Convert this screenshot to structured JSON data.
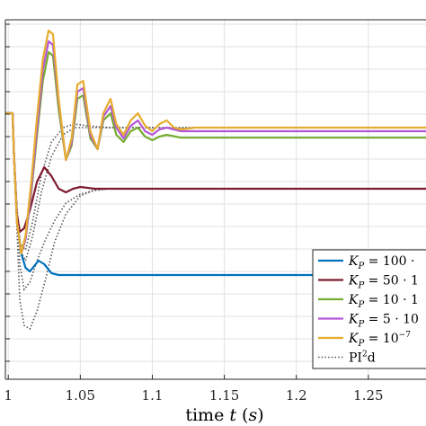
{
  "chart_data": {
    "type": "line",
    "xlabel": "time t (s)",
    "xlim": [
      0.998,
      1.29
    ],
    "ylim": [
      0,
      1
    ],
    "xticks": [
      1,
      1.05,
      1.1,
      1.15,
      1.2,
      1.25
    ],
    "xtick_labels": [
      "1",
      "1.05",
      "1.1",
      "1.15",
      "1.2",
      "1.25"
    ],
    "grid": true,
    "legend_position": "lower-right",
    "series": [
      {
        "name": "K_P = 100 ·",
        "label_parts": {
          "main": "K",
          "sub": "P",
          "rest": " = 100 ·"
        },
        "color": "#0072BD",
        "style": "solid",
        "steady": 0.29,
        "points": [
          [
            0.998,
            0.74
          ],
          [
            1.003,
            0.74
          ],
          [
            1.004,
            0.62
          ],
          [
            1.006,
            0.45
          ],
          [
            1.009,
            0.35
          ],
          [
            1.012,
            0.31
          ],
          [
            1.015,
            0.3
          ],
          [
            1.018,
            0.315
          ],
          [
            1.021,
            0.33
          ],
          [
            1.025,
            0.32
          ],
          [
            1.03,
            0.295
          ],
          [
            1.035,
            0.29
          ],
          [
            1.05,
            0.29
          ],
          [
            1.29,
            0.29
          ]
        ]
      },
      {
        "name": "K_P = 50 · 1",
        "label_parts": {
          "main": "K",
          "sub": "P",
          "rest": " = 50 · 1"
        },
        "color": "#7E1A2F",
        "style": "solid",
        "steady": 0.53,
        "points": [
          [
            0.998,
            0.74
          ],
          [
            1.003,
            0.74
          ],
          [
            1.004,
            0.62
          ],
          [
            1.006,
            0.46
          ],
          [
            1.008,
            0.41
          ],
          [
            1.011,
            0.42
          ],
          [
            1.015,
            0.47
          ],
          [
            1.02,
            0.55
          ],
          [
            1.025,
            0.59
          ],
          [
            1.03,
            0.565
          ],
          [
            1.035,
            0.53
          ],
          [
            1.04,
            0.52
          ],
          [
            1.045,
            0.53
          ],
          [
            1.05,
            0.535
          ],
          [
            1.06,
            0.53
          ],
          [
            1.29,
            0.53
          ]
        ]
      },
      {
        "name": "K_P = 10 · 1",
        "label_parts": {
          "main": "K",
          "sub": "P",
          "rest": " = 10 · 1"
        },
        "color": "#77AC30",
        "style": "solid",
        "steady": 0.672,
        "points": [
          [
            0.998,
            0.74
          ],
          [
            1.003,
            0.74
          ],
          [
            1.004,
            0.62
          ],
          [
            1.006,
            0.44
          ],
          [
            1.009,
            0.35
          ],
          [
            1.012,
            0.39
          ],
          [
            1.016,
            0.52
          ],
          [
            1.02,
            0.68
          ],
          [
            1.024,
            0.83
          ],
          [
            1.028,
            0.91
          ],
          [
            1.031,
            0.9
          ],
          [
            1.035,
            0.75
          ],
          [
            1.04,
            0.61
          ],
          [
            1.044,
            0.65
          ],
          [
            1.048,
            0.78
          ],
          [
            1.052,
            0.79
          ],
          [
            1.057,
            0.67
          ],
          [
            1.062,
            0.64
          ],
          [
            1.066,
            0.72
          ],
          [
            1.071,
            0.74
          ],
          [
            1.075,
            0.68
          ],
          [
            1.08,
            0.66
          ],
          [
            1.085,
            0.69
          ],
          [
            1.09,
            0.7
          ],
          [
            1.095,
            0.675
          ],
          [
            1.1,
            0.665
          ],
          [
            1.105,
            0.675
          ],
          [
            1.11,
            0.68
          ],
          [
            1.12,
            0.672
          ],
          [
            1.29,
            0.672
          ]
        ]
      },
      {
        "name": "K_P = 5 · 10",
        "label_parts": {
          "main": "K",
          "sub": "P",
          "rest": " = 5 · 10"
        },
        "color": "#B356D6",
        "style": "solid",
        "steady": 0.69,
        "points": [
          [
            0.998,
            0.74
          ],
          [
            1.003,
            0.74
          ],
          [
            1.004,
            0.62
          ],
          [
            1.006,
            0.44
          ],
          [
            1.009,
            0.35
          ],
          [
            1.012,
            0.39
          ],
          [
            1.016,
            0.53
          ],
          [
            1.02,
            0.7
          ],
          [
            1.024,
            0.86
          ],
          [
            1.028,
            0.94
          ],
          [
            1.031,
            0.93
          ],
          [
            1.035,
            0.77
          ],
          [
            1.04,
            0.61
          ],
          [
            1.044,
            0.66
          ],
          [
            1.048,
            0.8
          ],
          [
            1.052,
            0.81
          ],
          [
            1.057,
            0.68
          ],
          [
            1.062,
            0.64
          ],
          [
            1.066,
            0.73
          ],
          [
            1.071,
            0.76
          ],
          [
            1.075,
            0.7
          ],
          [
            1.08,
            0.67
          ],
          [
            1.085,
            0.705
          ],
          [
            1.09,
            0.72
          ],
          [
            1.095,
            0.69
          ],
          [
            1.1,
            0.68
          ],
          [
            1.105,
            0.695
          ],
          [
            1.11,
            0.7
          ],
          [
            1.12,
            0.69
          ],
          [
            1.29,
            0.69
          ]
        ]
      },
      {
        "name": "K_P = 10^-7",
        "label_parts": {
          "main": "K",
          "sub": "P",
          "rest": " = 10",
          "sup": "−7"
        },
        "color": "#E6AC2E",
        "style": "solid",
        "steady": 0.7,
        "points": [
          [
            0.998,
            0.74
          ],
          [
            1.003,
            0.74
          ],
          [
            1.004,
            0.62
          ],
          [
            1.006,
            0.44
          ],
          [
            1.009,
            0.35
          ],
          [
            1.012,
            0.4
          ],
          [
            1.016,
            0.55
          ],
          [
            1.02,
            0.73
          ],
          [
            1.024,
            0.89
          ],
          [
            1.028,
            0.97
          ],
          [
            1.031,
            0.96
          ],
          [
            1.035,
            0.78
          ],
          [
            1.04,
            0.61
          ],
          [
            1.044,
            0.67
          ],
          [
            1.048,
            0.82
          ],
          [
            1.052,
            0.83
          ],
          [
            1.057,
            0.69
          ],
          [
            1.062,
            0.64
          ],
          [
            1.066,
            0.74
          ],
          [
            1.071,
            0.78
          ],
          [
            1.075,
            0.71
          ],
          [
            1.08,
            0.68
          ],
          [
            1.085,
            0.72
          ],
          [
            1.09,
            0.74
          ],
          [
            1.095,
            0.705
          ],
          [
            1.1,
            0.69
          ],
          [
            1.105,
            0.71
          ],
          [
            1.11,
            0.72
          ],
          [
            1.115,
            0.7
          ],
          [
            1.12,
            0.695
          ],
          [
            1.13,
            0.7
          ],
          [
            1.29,
            0.7
          ]
        ]
      },
      {
        "name": "PI²d",
        "label_parts": {
          "main": "PI",
          "sup": "2",
          "rest": "d"
        },
        "color": "#555555",
        "style": "dotted",
        "curves": [
          [
            [
              0.998,
              0.74
            ],
            [
              1.003,
              0.74
            ],
            [
              1.005,
              0.55
            ],
            [
              1.008,
              0.32
            ],
            [
              1.011,
              0.25
            ],
            [
              1.015,
              0.27
            ],
            [
              1.02,
              0.33
            ],
            [
              1.026,
              0.39
            ],
            [
              1.032,
              0.44
            ],
            [
              1.04,
              0.49
            ],
            [
              1.05,
              0.515
            ],
            [
              1.06,
              0.525
            ],
            [
              1.07,
              0.53
            ],
            [
              1.29,
              0.53
            ]
          ],
          [
            [
              0.998,
              0.74
            ],
            [
              1.003,
              0.74
            ],
            [
              1.005,
              0.52
            ],
            [
              1.008,
              0.22
            ],
            [
              1.011,
              0.15
            ],
            [
              1.015,
              0.14
            ],
            [
              1.02,
              0.19
            ],
            [
              1.026,
              0.28
            ],
            [
              1.032,
              0.38
            ],
            [
              1.04,
              0.46
            ],
            [
              1.05,
              0.51
            ],
            [
              1.06,
              0.527
            ],
            [
              1.07,
              0.53
            ],
            [
              1.29,
              0.53
            ]
          ],
          [
            [
              0.998,
              0.74
            ],
            [
              1.003,
              0.74
            ],
            [
              1.005,
              0.53
            ],
            [
              1.008,
              0.38
            ],
            [
              1.012,
              0.36
            ],
            [
              1.017,
              0.44
            ],
            [
              1.023,
              0.57
            ],
            [
              1.03,
              0.66
            ],
            [
              1.038,
              0.7
            ],
            [
              1.046,
              0.71
            ],
            [
              1.055,
              0.705
            ],
            [
              1.07,
              0.7
            ],
            [
              1.29,
              0.7
            ]
          ],
          [
            [
              0.998,
              0.74
            ],
            [
              1.003,
              0.74
            ],
            [
              1.005,
              0.53
            ],
            [
              1.008,
              0.36
            ],
            [
              1.012,
              0.33
            ],
            [
              1.017,
              0.4
            ],
            [
              1.023,
              0.52
            ],
            [
              1.03,
              0.62
            ],
            [
              1.038,
              0.68
            ],
            [
              1.046,
              0.7
            ],
            [
              1.055,
              0.7
            ],
            [
              1.07,
              0.7
            ],
            [
              1.29,
              0.7
            ]
          ]
        ]
      }
    ]
  }
}
